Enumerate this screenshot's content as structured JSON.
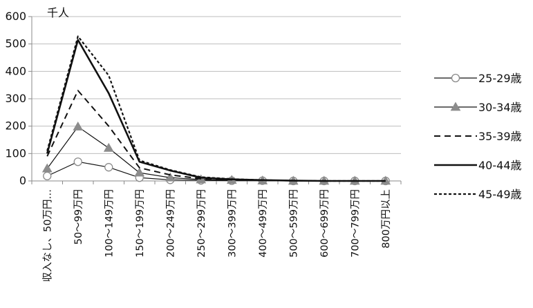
{
  "chart_data": {
    "type": "line",
    "unit_label": "千人",
    "categories": [
      "収入なし、50万円…",
      "50～99万円",
      "100～149万円",
      "150～199万円",
      "200～249万円",
      "250～299万円",
      "300～399万円",
      "400～499万円",
      "500～599万円",
      "600～699万円",
      "700～799万円",
      "800万円以上"
    ],
    "ylim": [
      0,
      600
    ],
    "yticks": [
      0,
      100,
      200,
      300,
      400,
      500,
      600
    ],
    "grid": true,
    "legend_position": "right",
    "series": [
      {
        "name": "25-29歳",
        "style": "marker-circle",
        "values": [
          18,
          70,
          50,
          12,
          4,
          2,
          1,
          1,
          0,
          0,
          0,
          0
        ]
      },
      {
        "name": "30-34歳",
        "style": "marker-triangle",
        "values": [
          45,
          198,
          120,
          30,
          12,
          5,
          3,
          1,
          0,
          0,
          0,
          0
        ]
      },
      {
        "name": "35-39歳",
        "style": "dashed-long",
        "values": [
          90,
          330,
          200,
          48,
          22,
          8,
          4,
          2,
          1,
          0,
          0,
          0
        ]
      },
      {
        "name": "40-44歳",
        "style": "solid-thick",
        "values": [
          100,
          515,
          320,
          70,
          38,
          12,
          6,
          3,
          1,
          0,
          0,
          0
        ]
      },
      {
        "name": "45-49歳",
        "style": "dashed-short",
        "values": [
          110,
          528,
          385,
          75,
          40,
          14,
          7,
          3,
          1,
          0,
          0,
          0
        ]
      }
    ]
  }
}
